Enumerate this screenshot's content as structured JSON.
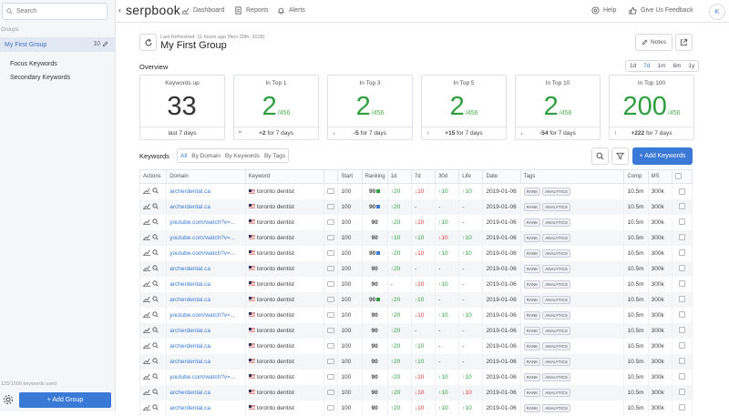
{
  "sidebar": {
    "search_placeholder": "Search",
    "groups_label": "Groups",
    "groups": [
      {
        "name": "My First Group",
        "count": "10"
      },
      {
        "name": "Focus Keywords"
      },
      {
        "name": "Secondary Keywords"
      }
    ],
    "keywords_used": "125/1000 keywords used",
    "add_group_label": "+ Add Group"
  },
  "topnav": {
    "logo": "serpbook",
    "links": [
      "Dashboard",
      "Reports",
      "Alerts"
    ],
    "help": "Help",
    "feedback": "Give Us Feedback",
    "avatar_initial": "K"
  },
  "header": {
    "last_refreshed": "Last Refreshed: 11 hours ago (Nov 20th, 2018)",
    "title": "My First Group",
    "notes_label": "Notes"
  },
  "overview": {
    "title": "Overview",
    "ranges": [
      "1d",
      "7d",
      "1m",
      "6m",
      "1y"
    ],
    "active_range": "7d",
    "cards": [
      {
        "title": "Keywords up",
        "value": "33",
        "denom": "",
        "foot": "last 7 days",
        "arrow": "",
        "green": false
      },
      {
        "title": "In Top 1",
        "value": "2",
        "denom": "/456",
        "foot": "+2 for 7 days",
        "delta": "+2",
        "rest": " for 7 days",
        "arrow": "^",
        "green": true
      },
      {
        "title": "In Top 3",
        "value": "2",
        "denom": "/456",
        "foot": "-5 for 7 days",
        "delta": "-5",
        "rest": " for 7 days",
        "arrow": "↓",
        "green": true
      },
      {
        "title": "In Top 5",
        "value": "2",
        "denom": "/456",
        "foot": "+15 for 7 days",
        "delta": "+15",
        "rest": " for 7 days",
        "arrow": "↑",
        "green": true
      },
      {
        "title": "In Top 10",
        "value": "2",
        "denom": "/456",
        "foot": "-54 for 7 days",
        "delta": "-54",
        "rest": " for 7 days",
        "arrow": "↓",
        "green": true
      },
      {
        "title": "In Top 100",
        "value": "200",
        "denom": "/456",
        "foot": "+222 for 7 days",
        "delta": "+222",
        "rest": " for 7 days",
        "arrow": "↑",
        "green": true
      }
    ]
  },
  "keywords": {
    "title": "Keywords",
    "tabs": [
      "All",
      "By Domain",
      "By Keywords",
      "By Tags"
    ],
    "active_tab": "All",
    "add_label": "+ Add Keywords",
    "columns": [
      "Actions",
      "Domain",
      "Keyword",
      "",
      "Start",
      "Ranking",
      "1d",
      "7d",
      "30d",
      "Life",
      "Date",
      "Tags",
      "Comp",
      "MS",
      ""
    ],
    "rows": [
      {
        "domain": "archerdental.ca",
        "keyword": "toronto dentist",
        "start": "100",
        "ranking": "90",
        "flag": "green",
        "d1": "↑20",
        "d7": "↓10",
        "d30": "↑10",
        "life": "↑10",
        "date": "2019-01-06",
        "tags": [
          "RANK",
          "ANALYTICS"
        ],
        "comp": "10.5m",
        "ms": "300k"
      },
      {
        "domain": "archerdental.ca",
        "keyword": "toronto dentist",
        "start": "100",
        "ranking": "90",
        "flag": "blue",
        "d1": "↑20",
        "d7": "-",
        "d30": "-",
        "life": "-",
        "date": "2019-01-06",
        "tags": [
          "RANK",
          "ANALYTICS"
        ],
        "comp": "10.5m",
        "ms": "300k"
      },
      {
        "domain": "youtube.com/watch?v=...",
        "keyword": "toronto dentist",
        "start": "100",
        "ranking": "90",
        "flag": "",
        "d1": "↑20",
        "d7": "↓10",
        "d30": "↑10",
        "life": "-",
        "date": "2019-01-06",
        "tags": [
          "RANK",
          "ANALYTICS"
        ],
        "comp": "10.5m",
        "ms": "300k"
      },
      {
        "domain": "youtube.com/watch?v=...",
        "keyword": "toronto dentist",
        "start": "100",
        "ranking": "90",
        "flag": "",
        "d1": "↑10",
        "d7": "↑10",
        "d30": "↓10",
        "life": "↑10",
        "date": "2019-01-06",
        "tags": [
          "RANK",
          "ANALYTICS"
        ],
        "comp": "10.5m",
        "ms": "300k"
      },
      {
        "domain": "youtube.com/watch?v=...",
        "keyword": "toronto dentist",
        "start": "100",
        "ranking": "90",
        "flag": "blue",
        "d1": "↑20",
        "d7": "↓10",
        "d30": "↑10",
        "life": "↑10",
        "date": "2019-01-06",
        "tags": [
          "RANK",
          "ANALYTICS"
        ],
        "comp": "10.5m",
        "ms": "300k"
      },
      {
        "domain": "archerdental.ca",
        "keyword": "toronto dentist",
        "start": "100",
        "ranking": "90",
        "flag": "",
        "d1": "↑20",
        "d7": "-",
        "d30": "-",
        "life": "-",
        "date": "2019-01-06",
        "tags": [
          "RANK",
          "ANALYTICS"
        ],
        "comp": "10.5m",
        "ms": "300k"
      },
      {
        "domain": "archerdental.ca",
        "keyword": "toronto dentist",
        "start": "100",
        "ranking": "90",
        "flag": "",
        "d1": "-",
        "d7": "↓10",
        "d30": "↑10",
        "life": "-",
        "date": "2019-01-06",
        "tags": [
          "RANK",
          "ANALYTICS"
        ],
        "comp": "10.5m",
        "ms": "300k"
      },
      {
        "domain": "archerdental.ca",
        "keyword": "toronto dentist",
        "start": "100",
        "ranking": "90",
        "flag": "green",
        "d1": "↑20",
        "d7": "↑10",
        "d30": "-",
        "life": "-",
        "date": "2019-01-06",
        "tags": [
          "RANK",
          "ANALYTICS"
        ],
        "comp": "10.5m",
        "ms": "300k"
      },
      {
        "domain": "youtube.com/watch?v=...",
        "keyword": "toronto dentist",
        "start": "100",
        "ranking": "90",
        "flag": "",
        "d1": "↑20",
        "d7": "↓10",
        "d30": "↑10",
        "life": "↑10",
        "date": "2019-01-06",
        "tags": [
          "RANK",
          "ANALYTICS"
        ],
        "comp": "10.5m",
        "ms": "300k"
      },
      {
        "domain": "archerdental.ca",
        "keyword": "toronto dentist",
        "start": "100",
        "ranking": "90",
        "flag": "",
        "d1": "↑20",
        "d7": "-",
        "d30": "-",
        "life": "-",
        "date": "2019-01-06",
        "tags": [
          "RANK",
          "ANALYTICS"
        ],
        "comp": "10.5m",
        "ms": "300k"
      },
      {
        "domain": "archerdental.ca",
        "keyword": "toronto dentist",
        "start": "100",
        "ranking": "90",
        "flag": "",
        "d1": "↑20",
        "d7": "↑10",
        "d30": "-",
        "life": "-",
        "date": "2019-01-06",
        "tags": [
          "RANK",
          "ANALYTICS"
        ],
        "comp": "10.5m",
        "ms": "300k"
      },
      {
        "domain": "archerdental.ca",
        "keyword": "toronto dentist",
        "start": "100",
        "ranking": "90",
        "flag": "",
        "d1": "↑20",
        "d7": "↑10",
        "d30": "-",
        "life": "-",
        "date": "2019-01-06",
        "tags": [
          "RANK",
          "ANALYTICS"
        ],
        "comp": "10.5m",
        "ms": "300k"
      },
      {
        "domain": "youtube.com/watch?v=...",
        "keyword": "toronto dentist",
        "start": "100",
        "ranking": "90",
        "flag": "",
        "d1": "↑20",
        "d7": "↓10",
        "d30": "↑10",
        "life": "↑10",
        "date": "2019-01-06",
        "tags": [
          "RANK",
          "ANALYTICS"
        ],
        "comp": "10.5m",
        "ms": "300k"
      },
      {
        "domain": "archerdental.ca",
        "keyword": "toronto dentist",
        "start": "100",
        "ranking": "90",
        "flag": "",
        "d1": "↑20",
        "d7": "↓10",
        "d30": "↑10",
        "life": "↓10",
        "date": "2019-01-06",
        "tags": [
          "RANK",
          "ANALYTICS"
        ],
        "comp": "10.5m",
        "ms": "300k"
      },
      {
        "domain": "archerdental.ca",
        "keyword": "toronto dentist",
        "start": "100",
        "ranking": "90",
        "flag": "",
        "d1": "↑20",
        "d7": "↓10",
        "d30": "↑10",
        "life": "↑10",
        "date": "2019-01-06",
        "tags": [
          "RANK",
          "ANALYTICS"
        ],
        "comp": "10.5m",
        "ms": "300k"
      }
    ]
  },
  "colors": {
    "accent": "#3a7ad6",
    "up": "#2e9e3f",
    "down": "#d33333",
    "flag_green": "#2e9e3f",
    "flag_blue": "#3a7ad6"
  }
}
